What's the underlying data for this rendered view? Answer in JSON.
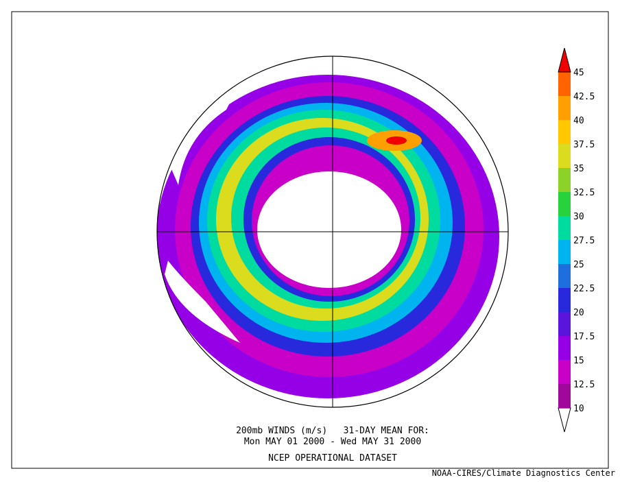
{
  "caption": {
    "line1": "200mb WINDS (m/s)   31-DAY MEAN FOR:",
    "line2": "Mon MAY 01 2000 - Wed MAY 31 2000",
    "line3": "NCEP OPERATIONAL DATASET"
  },
  "credit": "NOAA-CIRES/Climate Diagnostics Center",
  "colorbar": {
    "labels": [
      10,
      12.5,
      15,
      17.5,
      20,
      22.5,
      25,
      27.5,
      30,
      32.5,
      35,
      37.5,
      40,
      42.5,
      45
    ],
    "colors": [
      "#ffffff",
      "#a0089c",
      "#c800c8",
      "#9600e6",
      "#5a14dc",
      "#2828dc",
      "#1e6ede",
      "#00b4f0",
      "#00dca0",
      "#28d23c",
      "#8cd228",
      "#dcdc1e",
      "#ffc800",
      "#ffa000",
      "#ff6400",
      "#f00000"
    ]
  }
}
